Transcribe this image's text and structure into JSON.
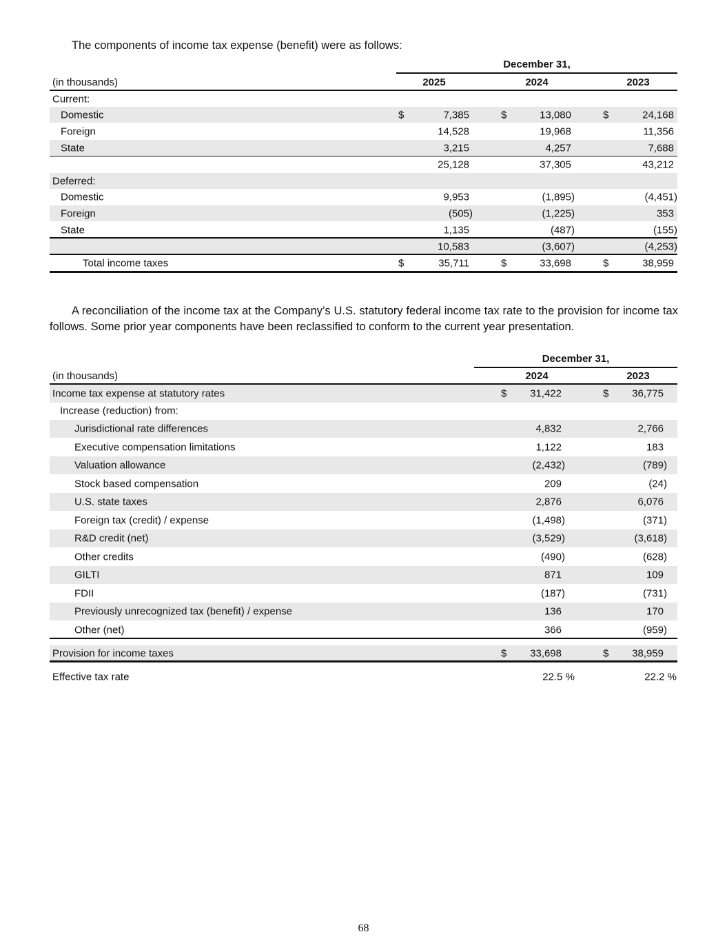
{
  "intro1": "The components of income tax expense (benefit) were as follows:",
  "table1": {
    "period_header": "December 31,",
    "units": "(in thousands)",
    "years": [
      "2025",
      "2024",
      "2023"
    ],
    "rows": [
      {
        "label": "Current:",
        "indent": 0,
        "values": [],
        "shade": false
      },
      {
        "label": "Domestic",
        "indent": 1,
        "values": [
          "7,385",
          "13,080",
          "24,168"
        ],
        "dollar": true,
        "shade": true
      },
      {
        "label": "Foreign",
        "indent": 1,
        "values": [
          "14,528",
          "19,968",
          "11,356"
        ],
        "shade": false
      },
      {
        "label": "State",
        "indent": 1,
        "values": [
          "3,215",
          "4,257",
          "7,688"
        ],
        "shade": true
      },
      {
        "label": "",
        "indent": 0,
        "values": [
          "25,128",
          "37,305",
          "43,212"
        ],
        "shade": false
      },
      {
        "label": "Deferred:",
        "indent": 0,
        "values": [],
        "shade": true
      },
      {
        "label": "Domestic",
        "indent": 1,
        "values": [
          "9,953",
          "(1,895)",
          "(4,451)"
        ],
        "shade": false
      },
      {
        "label": "Foreign",
        "indent": 1,
        "values": [
          "(505)",
          "(1,225)",
          "353"
        ],
        "shade": true
      },
      {
        "label": "State",
        "indent": 1,
        "values": [
          "1,135",
          "(487)",
          "(155)"
        ],
        "shade": false
      },
      {
        "label": "",
        "indent": 0,
        "values": [
          "10,583",
          "(3,607)",
          "(4,253)"
        ],
        "shade": true
      },
      {
        "label": "Total income taxes",
        "indent": 2,
        "values": [
          "35,711",
          "33,698",
          "38,959"
        ],
        "dollar": true,
        "shade": false
      }
    ]
  },
  "intro2": "A reconciliation of the income tax at the Company’s U.S. statutory federal income tax rate to the provision for income tax follows. Some prior year components have been reclassified to conform to the current year presentation.",
  "table2": {
    "period_header": "December 31,",
    "units": "(in thousands)",
    "years": [
      "2024",
      "2023"
    ],
    "rows": [
      {
        "label": "Income tax expense at statutory rates",
        "indent": 0,
        "values": [
          "31,422",
          "36,775"
        ],
        "dollar": true,
        "shade": true
      },
      {
        "label": "Increase (reduction) from:",
        "indent": 1,
        "values": [],
        "shade": false
      },
      {
        "label": "Jurisdictional rate differences",
        "indent": 2,
        "values": [
          "4,832",
          "2,766"
        ],
        "shade": true
      },
      {
        "label": "Executive compensation limitations",
        "indent": 2,
        "values": [
          "1,122",
          "183"
        ],
        "shade": false
      },
      {
        "label": "Valuation allowance",
        "indent": 2,
        "values": [
          "(2,432)",
          "(789)"
        ],
        "shade": true
      },
      {
        "label": "Stock based compensation",
        "indent": 2,
        "values": [
          "209",
          "(24)"
        ],
        "shade": false
      },
      {
        "label": "U.S. state taxes",
        "indent": 2,
        "values": [
          "2,876",
          "6,076"
        ],
        "shade": true
      },
      {
        "label": "Foreign tax (credit) / expense",
        "indent": 2,
        "values": [
          "(1,498)",
          "(371)"
        ],
        "shade": false
      },
      {
        "label": "R&D credit (net)",
        "indent": 2,
        "values": [
          "(3,529)",
          "(3,618)"
        ],
        "shade": true
      },
      {
        "label": "Other credits",
        "indent": 2,
        "values": [
          "(490)",
          "(628)"
        ],
        "shade": false
      },
      {
        "label": "GILTI",
        "indent": 2,
        "values": [
          "871",
          "109"
        ],
        "shade": true
      },
      {
        "label": "FDII",
        "indent": 2,
        "values": [
          "(187)",
          "(731)"
        ],
        "shade": false
      },
      {
        "label": "Previously unrecognized tax (benefit) / expense",
        "indent": 2,
        "values": [
          "136",
          "170"
        ],
        "shade": true
      },
      {
        "label": "Other (net)",
        "indent": 2,
        "values": [
          "366",
          "(959)"
        ],
        "shade": false
      },
      {
        "label": "Provision for income taxes",
        "indent": 0,
        "values": [
          "33,698",
          "38,959"
        ],
        "dollar": true,
        "shade": true
      },
      {
        "label": "Effective tax rate",
        "indent": 0,
        "values": [
          "22.5 %",
          "22.2 %"
        ],
        "percent": true,
        "shade": false
      }
    ]
  },
  "currency_symbol": "$",
  "page_number": "68"
}
